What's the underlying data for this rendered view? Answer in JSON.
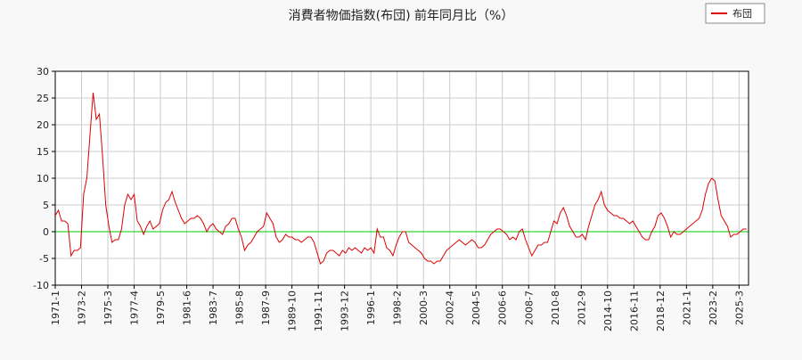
{
  "chart_data": {
    "type": "line",
    "title": "消費者物価指数(布団) 前年同月比（%）",
    "x": [
      "1971-1",
      "1971-4",
      "1971-7",
      "1971-10",
      "1972-1",
      "1972-4",
      "1972-7",
      "1972-10",
      "1973-1",
      "1973-4",
      "1973-7",
      "1973-10",
      "1974-1",
      "1974-4",
      "1974-7",
      "1974-10",
      "1975-1",
      "1975-4",
      "1975-7",
      "1975-10",
      "1976-1",
      "1976-4",
      "1976-7",
      "1976-10",
      "1977-1",
      "1977-4",
      "1977-7",
      "1977-10",
      "1978-1",
      "1978-4",
      "1978-7",
      "1978-10",
      "1979-1",
      "1979-4",
      "1979-7",
      "1979-10",
      "1980-1",
      "1980-4",
      "1980-7",
      "1980-10",
      "1981-1",
      "1981-4",
      "1981-7",
      "1981-10",
      "1982-1",
      "1982-4",
      "1982-7",
      "1982-10",
      "1983-1",
      "1983-4",
      "1983-7",
      "1983-10",
      "1984-1",
      "1984-4",
      "1984-7",
      "1984-10",
      "1985-1",
      "1985-4",
      "1985-7",
      "1985-10",
      "1986-1",
      "1986-4",
      "1986-7",
      "1986-10",
      "1987-1",
      "1987-4",
      "1987-7",
      "1987-10",
      "1988-1",
      "1988-4",
      "1988-7",
      "1988-10",
      "1989-1",
      "1989-4",
      "1989-7",
      "1989-10",
      "1990-1",
      "1990-4",
      "1990-7",
      "1990-10",
      "1991-1",
      "1991-4",
      "1991-7",
      "1991-10",
      "1992-1",
      "1992-4",
      "1992-7",
      "1992-10",
      "1993-1",
      "1993-4",
      "1993-7",
      "1993-10",
      "1994-1",
      "1994-4",
      "1994-7",
      "1994-10",
      "1995-1",
      "1995-4",
      "1995-7",
      "1995-10",
      "1996-1",
      "1996-4",
      "1996-7",
      "1996-10",
      "1997-1",
      "1997-4",
      "1997-7",
      "1997-10",
      "1998-1",
      "1998-4",
      "1998-7",
      "1998-10",
      "1999-1",
      "1999-4",
      "1999-7",
      "1999-10",
      "2000-1",
      "2000-4",
      "2000-7",
      "2000-10",
      "2001-1",
      "2001-4",
      "2001-7",
      "2001-10",
      "2002-1",
      "2002-4",
      "2002-7",
      "2002-10",
      "2003-1",
      "2003-4",
      "2003-7",
      "2003-10",
      "2004-1",
      "2004-4",
      "2004-7",
      "2004-10",
      "2005-1",
      "2005-4",
      "2005-7",
      "2005-10",
      "2006-1",
      "2006-4",
      "2006-7",
      "2006-10",
      "2007-1",
      "2007-4",
      "2007-7",
      "2007-10",
      "2008-1",
      "2008-4",
      "2008-7",
      "2008-10",
      "2009-1",
      "2009-4",
      "2009-7",
      "2009-10",
      "2010-1",
      "2010-4",
      "2010-7",
      "2010-10",
      "2011-1",
      "2011-4",
      "2011-7",
      "2011-10",
      "2012-1",
      "2012-4",
      "2012-7",
      "2012-10",
      "2013-1",
      "2013-4",
      "2013-7",
      "2013-10",
      "2014-1",
      "2014-4",
      "2014-7",
      "2014-10",
      "2015-1",
      "2015-4",
      "2015-7",
      "2015-10",
      "2016-1",
      "2016-4",
      "2016-7",
      "2016-10",
      "2017-1",
      "2017-4",
      "2017-7",
      "2017-10",
      "2018-1",
      "2018-4",
      "2018-7",
      "2018-10",
      "2019-1",
      "2019-4",
      "2019-7",
      "2019-10",
      "2020-1",
      "2020-4",
      "2020-7",
      "2020-10",
      "2021-1",
      "2021-4",
      "2021-7",
      "2021-10",
      "2022-1",
      "2022-4",
      "2022-7",
      "2022-10",
      "2023-1",
      "2023-4",
      "2023-7",
      "2023-10",
      "2024-1",
      "2024-4",
      "2024-7",
      "2024-10",
      "2025-1",
      "2025-4",
      "2025-7",
      "2025-10"
    ],
    "series": [
      {
        "name": "布団",
        "color": "#dd0000",
        "values": [
          3,
          4,
          2,
          2,
          1.5,
          -4.5,
          -3.5,
          -3.5,
          -3,
          7,
          10,
          18,
          26,
          21,
          22,
          14,
          5,
          1,
          -2,
          -1.5,
          -1.5,
          0.5,
          5,
          7,
          6,
          7,
          2,
          1,
          -0.5,
          1,
          2,
          0.5,
          1,
          1.5,
          4,
          5.5,
          6,
          7.5,
          5.5,
          4,
          2.5,
          1.5,
          2,
          2.5,
          2.5,
          3,
          2.5,
          1.5,
          0,
          1,
          1.5,
          0.5,
          0,
          -0.5,
          1,
          1.5,
          2.5,
          2.5,
          0.5,
          -1,
          -3.5,
          -2.5,
          -2,
          -1,
          0,
          0.5,
          1,
          3.5,
          2.5,
          1.5,
          -1,
          -2,
          -1.5,
          -0.5,
          -1,
          -1,
          -1.5,
          -1.5,
          -2,
          -1.5,
          -1,
          -1,
          -2,
          -4,
          -6,
          -5.5,
          -4,
          -3.5,
          -3.5,
          -4,
          -4.5,
          -3.5,
          -4,
          -3,
          -3.5,
          -3,
          -3.5,
          -4,
          -3,
          -3.5,
          -3,
          -4,
          0.5,
          -1,
          -1,
          -3,
          -3.5,
          -4.5,
          -2.5,
          -1,
          0,
          0,
          -2,
          -2.5,
          -3,
          -3.5,
          -4,
          -5,
          -5.5,
          -5.5,
          -6,
          -5.5,
          -5.5,
          -4.5,
          -3.5,
          -3,
          -2.5,
          -2,
          -1.5,
          -2,
          -2.5,
          -2,
          -1.5,
          -2,
          -3,
          -3,
          -2.5,
          -1.5,
          -0.5,
          0,
          0.5,
          0.5,
          0,
          -0.5,
          -1.5,
          -1,
          -1.5,
          0,
          0.5,
          -1.5,
          -3,
          -4.5,
          -3.5,
          -2.5,
          -2.5,
          -2,
          -2,
          0,
          2,
          1.5,
          3.5,
          4.5,
          3,
          1,
          0,
          -1,
          -1,
          -0.5,
          -1.5,
          1,
          3,
          5,
          6,
          7.5,
          5,
          4,
          3.5,
          3,
          3,
          2.5,
          2.5,
          2,
          1.5,
          2,
          1,
          0,
          -1,
          -1.5,
          -1.5,
          0,
          1,
          3,
          3.5,
          2.5,
          1,
          -1,
          0,
          -0.5,
          -0.5,
          0,
          0.5,
          1,
          1.5,
          2,
          2.5,
          4,
          7,
          9,
          10,
          9.5,
          6,
          3,
          2,
          1,
          -1,
          -0.5,
          -0.5,
          0,
          0.5,
          0.5
        ]
      }
    ],
    "xlim": [
      "1971-1",
      "2025-12"
    ],
    "xticks": [
      "1971-1",
      "1973-2",
      "1975-3",
      "1977-4",
      "1979-5",
      "1981-6",
      "1983-7",
      "1985-8",
      "1987-9",
      "1989-10",
      "1991-11",
      "1993-12",
      "1996-1",
      "1998-2",
      "2000-3",
      "2002-4",
      "2004-5",
      "2006-6",
      "2008-7",
      "2010-8",
      "2012-9",
      "2014-10",
      "2016-11",
      "2018-12",
      "2021-1",
      "2023-2",
      "2025-3"
    ],
    "ylim": [
      -10,
      30
    ],
    "yticks": [
      -10,
      -5,
      0,
      5,
      10,
      15,
      20,
      25,
      30
    ],
    "grid": true,
    "zero_line_color": "#00cc00",
    "legend": "top-right"
  }
}
